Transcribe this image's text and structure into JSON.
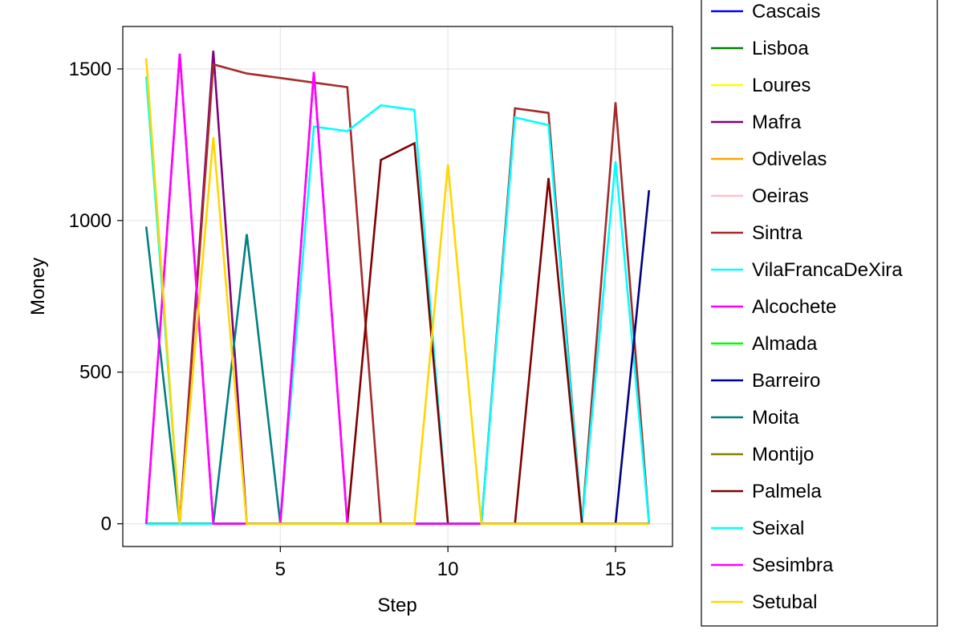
{
  "chart_data": {
    "type": "line",
    "title": "",
    "xlabel": "Step",
    "ylabel": "Money",
    "xlim": [
      0.3,
      16.7
    ],
    "ylim": [
      -75,
      1640
    ],
    "x_ticks": [
      5,
      10,
      15
    ],
    "y_ticks": [
      0,
      500,
      1000,
      1500
    ],
    "grid": true,
    "legend_position": "right",
    "x": [
      1,
      2,
      3,
      4,
      5,
      6,
      7,
      8,
      9,
      10,
      11,
      12,
      13,
      14,
      15,
      16
    ],
    "series": [
      {
        "name": "Cascais",
        "color": "#0000ff",
        "values": [
          0,
          0,
          0,
          0,
          0,
          0,
          0,
          0,
          0,
          0,
          0,
          0,
          0,
          0,
          0,
          0
        ]
      },
      {
        "name": "Lisboa",
        "color": "#008000",
        "values": [
          0,
          0,
          0,
          0,
          0,
          0,
          0,
          0,
          0,
          0,
          0,
          0,
          0,
          0,
          0,
          0
        ]
      },
      {
        "name": "Loures",
        "color": "#ffff00",
        "values": [
          0,
          0,
          0,
          0,
          0,
          0,
          0,
          0,
          0,
          0,
          0,
          0,
          0,
          0,
          0,
          0
        ]
      },
      {
        "name": "Mafra",
        "color": "#800080",
        "values": [
          0,
          0,
          1560,
          0,
          0,
          0,
          0,
          0,
          0,
          0,
          0,
          0,
          0,
          0,
          0,
          0
        ]
      },
      {
        "name": "Odivelas",
        "color": "#ffa500",
        "values": [
          0,
          0,
          0,
          0,
          0,
          0,
          0,
          0,
          0,
          0,
          0,
          0,
          0,
          0,
          0,
          0
        ]
      },
      {
        "name": "Oeiras",
        "color": "#ffc0cb",
        "values": [
          0,
          0,
          0,
          0,
          0,
          0,
          0,
          0,
          0,
          0,
          0,
          0,
          0,
          0,
          0,
          0
        ]
      },
      {
        "name": "Sintra",
        "color": "#a52a2a",
        "values": [
          0,
          0,
          1515,
          1485,
          1470,
          1455,
          1440,
          0,
          0,
          0,
          0,
          1370,
          1355,
          0,
          1390,
          0
        ]
      },
      {
        "name": "VilaFrancaDeXira",
        "color": "#00ffff",
        "values": [
          1475,
          0,
          0,
          0,
          0,
          1310,
          1295,
          1380,
          1365,
          0,
          0,
          1340,
          1315,
          0,
          1195,
          0
        ]
      },
      {
        "name": "Alcochete",
        "color": "#ff00ff",
        "values": [
          0,
          1550,
          0,
          0,
          0,
          1490,
          0,
          0,
          0,
          0,
          0,
          0,
          0,
          0,
          0,
          0
        ]
      },
      {
        "name": "Almada",
        "color": "#00ff00",
        "values": [
          0,
          0,
          0,
          0,
          0,
          0,
          0,
          0,
          0,
          0,
          0,
          0,
          0,
          0,
          0,
          0
        ]
      },
      {
        "name": "Barreiro",
        "color": "#000080",
        "values": [
          0,
          0,
          0,
          0,
          0,
          0,
          0,
          0,
          0,
          0,
          0,
          0,
          0,
          0,
          0,
          1100
        ]
      },
      {
        "name": "Moita",
        "color": "#008080",
        "values": [
          980,
          0,
          0,
          955,
          0,
          0,
          0,
          0,
          0,
          0,
          0,
          0,
          0,
          0,
          0,
          0
        ]
      },
      {
        "name": "Montijo",
        "color": "#808000",
        "values": [
          0,
          0,
          0,
          0,
          0,
          0,
          0,
          0,
          0,
          0,
          0,
          0,
          0,
          0,
          0,
          0
        ]
      },
      {
        "name": "Palmela",
        "color": "#800000",
        "values": [
          0,
          0,
          0,
          0,
          0,
          0,
          0,
          1200,
          1255,
          0,
          0,
          0,
          1140,
          0,
          0,
          0
        ]
      },
      {
        "name": "Seixal",
        "color": "#00ffff",
        "values": [
          0,
          0,
          0,
          0,
          0,
          0,
          0,
          0,
          0,
          0,
          0,
          0,
          0,
          0,
          0,
          0
        ]
      },
      {
        "name": "Sesimbra",
        "color": "#ff00ff",
        "values": [
          0,
          1550,
          0,
          0,
          0,
          1490,
          0,
          0,
          0,
          0,
          0,
          0,
          0,
          0,
          0,
          0
        ]
      },
      {
        "name": "Setubal",
        "color": "#ffd700",
        "values": [
          1535,
          0,
          1275,
          0,
          0,
          0,
          0,
          0,
          0,
          1185,
          0,
          0,
          0,
          0,
          0,
          0
        ]
      }
    ]
  }
}
